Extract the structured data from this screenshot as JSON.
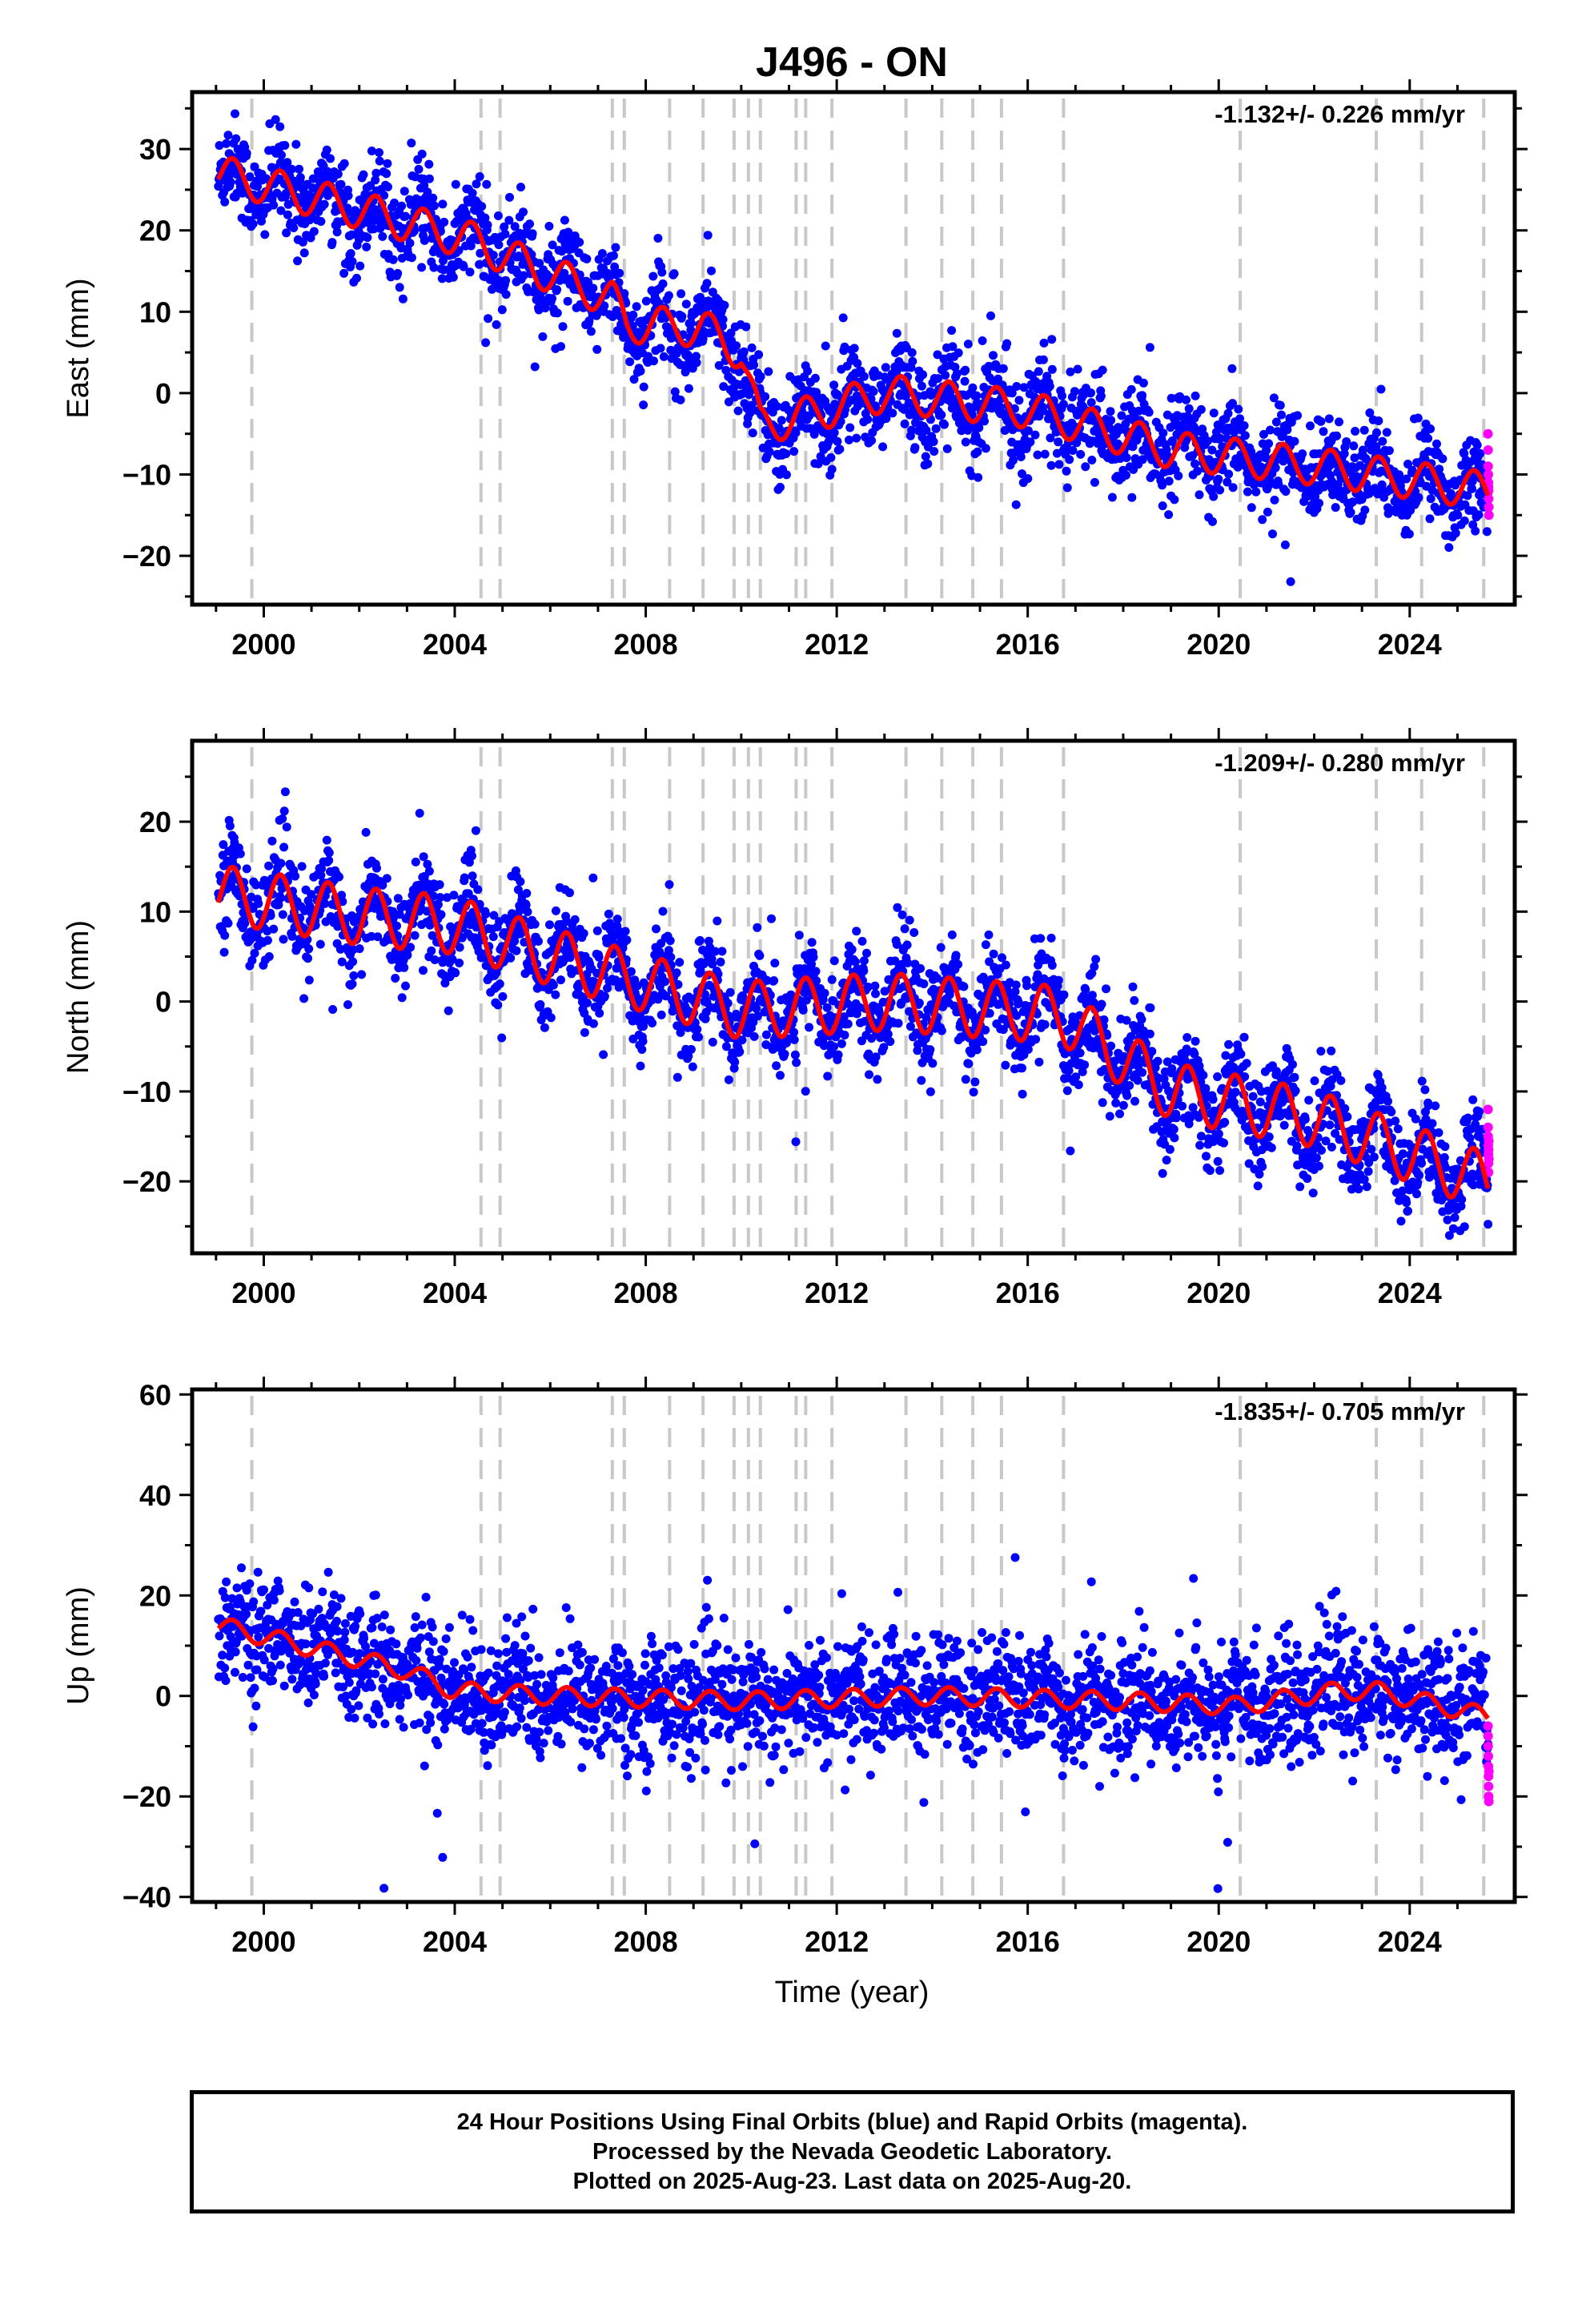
{
  "title": "J496 - ON",
  "xlabel": "Time (year)",
  "x_ticks": [
    2000,
    2004,
    2008,
    2012,
    2016,
    2020,
    2024
  ],
  "colors": {
    "final_orbits": "#0000ff",
    "rapid_orbits": "#ff00ff",
    "model": "#ff0000",
    "event_lines": "#c8c8c8"
  },
  "caption": {
    "line1": "24 Hour Positions Using Final Orbits (blue) and Rapid Orbits (magenta).",
    "line2": "Processed by the Nevada Geodetic Laboratory.",
    "line3": "Plotted on 2025-Aug-23. Last data on 2025-Aug-20."
  },
  "chart_data": [
    {
      "type": "scatter",
      "component": "east",
      "ylabel": "East (mm)",
      "rate_label": "-1.132+/- 0.226 mm/yr",
      "xlim": [
        1998.5,
        2026.2
      ],
      "ylim": [
        -26,
        37
      ],
      "y_ticks": [
        -20,
        -10,
        0,
        10,
        20,
        30
      ],
      "x_range": [
        1999.05,
        2025.64
      ],
      "event_lines": [
        1999.75,
        2004.55,
        2004.95,
        2007.3,
        2007.55,
        2008.5,
        2009.2,
        2009.85,
        2010.15,
        2010.4,
        2011.15,
        2011.35,
        2011.9,
        2013.45,
        2014.2,
        2014.85,
        2015.45,
        2016.75,
        2020.45,
        2023.3,
        2024.25,
        2025.55
      ],
      "steps": [
        [
          2004.95,
          -2.5
        ],
        [
          2007.3,
          -1.5
        ],
        [
          2009.2,
          -1
        ],
        [
          2009.85,
          1.5
        ],
        [
          2010.15,
          -6
        ],
        [
          2011.15,
          3
        ],
        [
          2015.45,
          -1.5
        ]
      ],
      "model_keypoints": [
        [
          1999.05,
          27
        ],
        [
          2002.0,
          22.5
        ],
        [
          2004.5,
          18.5
        ],
        [
          2005.0,
          17
        ],
        [
          2007.3,
          11.5
        ],
        [
          2007.6,
          8.5
        ],
        [
          2009.2,
          8
        ],
        [
          2010.0,
          5
        ],
        [
          2010.4,
          -4
        ],
        [
          2011.2,
          -3
        ],
        [
          2013.0,
          0
        ],
        [
          2016.0,
          -2
        ],
        [
          2019.0,
          -7
        ],
        [
          2022.0,
          -9
        ],
        [
          2025.6,
          -12
        ]
      ],
      "seasonal_amp": 2.3,
      "scatter": 2.8,
      "rapid_points": [
        -5,
        -7,
        -9,
        -10,
        -11,
        -11.5,
        -12,
        -13,
        -14,
        -15
      ]
    },
    {
      "type": "scatter",
      "component": "north",
      "ylabel": "North (mm)",
      "rate_label": "-1.209+/- 0.280 mm/yr",
      "xlim": [
        1998.5,
        2026.2
      ],
      "ylim": [
        -28,
        29
      ],
      "y_ticks": [
        -20,
        -10,
        0,
        10,
        20
      ],
      "x_range": [
        1999.05,
        2025.64
      ],
      "event_lines": [
        1999.75,
        2004.55,
        2004.95,
        2007.3,
        2007.55,
        2008.5,
        2009.2,
        2009.85,
        2010.15,
        2010.4,
        2011.15,
        2011.35,
        2011.9,
        2013.45,
        2014.2,
        2014.85,
        2015.45,
        2016.75,
        2020.45,
        2023.3,
        2024.25,
        2025.55
      ],
      "steps": [
        [
          2016.75,
          -4
        ]
      ],
      "model_keypoints": [
        [
          1999.05,
          12
        ],
        [
          2002.0,
          9.5
        ],
        [
          2004.0,
          8.5
        ],
        [
          2006.0,
          5
        ],
        [
          2010.0,
          -1
        ],
        [
          2013.0,
          0
        ],
        [
          2016.7,
          -1.5
        ],
        [
          2019.0,
          -10
        ],
        [
          2022.0,
          -13
        ],
        [
          2025.6,
          -20
        ]
      ],
      "seasonal_amp": 3.2,
      "scatter": 2.6,
      "rapid_points": [
        -12,
        -14,
        -15,
        -16,
        -17,
        -18,
        -19,
        -16.5,
        -15.5,
        -17.5
      ]
    },
    {
      "type": "scatter",
      "component": "up",
      "ylabel": "Up (mm)",
      "rate_label": "-1.835+/- 0.705 mm/yr",
      "xlim": [
        1998.5,
        2026.2
      ],
      "ylim": [
        -41,
        61
      ],
      "y_ticks": [
        -40,
        -20,
        0,
        20,
        40,
        60
      ],
      "x_range": [
        1999.05,
        2025.64
      ],
      "event_lines": [
        1999.75,
        2004.55,
        2004.95,
        2007.3,
        2007.55,
        2008.5,
        2009.2,
        2009.85,
        2010.15,
        2010.4,
        2011.15,
        2011.35,
        2011.9,
        2013.45,
        2014.2,
        2014.85,
        2015.45,
        2016.75,
        2020.45,
        2023.3,
        2024.25,
        2025.55
      ],
      "steps": [
        [
          1999.75,
          -7
        ],
        [
          2003.0,
          -3
        ],
        [
          2004.5,
          -6
        ],
        [
          2004.95,
          9
        ],
        [
          2020.45,
          3
        ],
        [
          2023.3,
          -13
        ]
      ],
      "model_keypoints": [
        [
          1999.05,
          14
        ],
        [
          2003.0,
          5
        ],
        [
          2004.0,
          1
        ],
        [
          2006.0,
          0
        ],
        [
          2010.0,
          -1
        ],
        [
          2014.0,
          0
        ],
        [
          2018.0,
          -1
        ],
        [
          2020.4,
          -2
        ],
        [
          2022.5,
          1
        ],
        [
          2023.3,
          1
        ],
        [
          2025.6,
          -4
        ]
      ],
      "seasonal_amp": 1.8,
      "scatter": 5.8,
      "rapid_points": [
        -6,
        -8,
        -10,
        -12,
        -14,
        -16,
        -18,
        -20,
        -21,
        -15
      ]
    }
  ]
}
